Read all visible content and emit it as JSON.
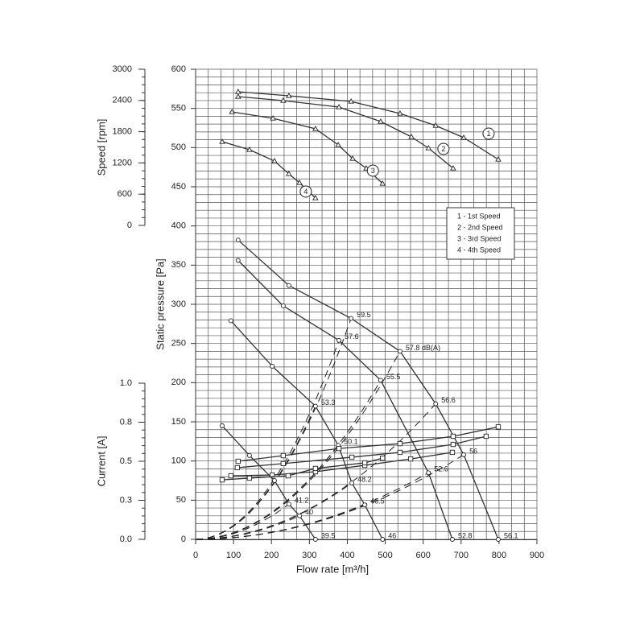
{
  "chart_data": {
    "type": "line",
    "xlabel": "Flow rate [m³/h]",
    "ylabel": "Static pressure [Pa]",
    "xlim": [
      0,
      900
    ],
    "xticks": [
      0,
      100,
      200,
      300,
      400,
      500,
      600,
      700,
      800,
      900
    ],
    "ylim": [
      0,
      600
    ],
    "yticks": [
      0,
      50,
      100,
      150,
      200,
      250,
      300,
      350,
      400,
      450,
      500,
      550,
      600
    ],
    "grid": true,
    "speed_axis": {
      "label": "Speed [rpm]",
      "lim": [
        0,
        3000
      ],
      "ticks": [
        0,
        600,
        1200,
        1800,
        2400,
        3000
      ]
    },
    "current_axis": {
      "label": "Current [A]",
      "lim": [
        0,
        1
      ],
      "ticks": [
        {
          "value": 0,
          "label": "0.0"
        },
        {
          "value": 0.25,
          "label": "0.3"
        },
        {
          "value": 0.5,
          "label": "0.5"
        },
        {
          "value": 0.75,
          "label": "0.8"
        },
        {
          "value": 1,
          "label": "1.0"
        }
      ]
    },
    "legend": [
      "1 - 1st Speed",
      "2 - 2nd Speed",
      "3 - 3rd Speed",
      "4 - 4th Speed"
    ],
    "series": [
      {
        "name": "1",
        "axis": "speed",
        "marker": "triangle",
        "color": "#333333",
        "x": [
          112,
          246,
          410,
          539,
          633,
          707,
          798
        ],
        "values": [
          2567,
          2490,
          2381,
          2149,
          1918,
          1686,
          1268
        ]
      },
      {
        "name": "2",
        "axis": "speed",
        "marker": "triangle",
        "color": "#333333",
        "x": [
          112,
          231,
          378,
          488,
          569,
          614,
          679
        ],
        "values": [
          2474,
          2397,
          2273,
          1995,
          1701,
          1485,
          1098
        ]
      },
      {
        "name": "3",
        "axis": "speed",
        "marker": "triangle",
        "color": "#333333",
        "x": [
          96,
          204,
          316,
          376,
          414,
          450,
          493
        ],
        "values": [
          2180,
          2057,
          1856,
          1546,
          1283,
          1098,
          804
        ]
      },
      {
        "name": "4",
        "axis": "speed",
        "marker": "triangle",
        "color": "#333333",
        "x": [
          70,
          142,
          208,
          246,
          274,
          316
        ],
        "values": [
          1608,
          1454,
          1237,
          990,
          820,
          526
        ]
      },
      {
        "axis": "pressure",
        "marker": "circle",
        "color": "#333333",
        "x": [
          112,
          246,
          410,
          539,
          633,
          707,
          798
        ],
        "values": [
          382,
          324,
          282,
          240,
          173,
          108,
          0
        ],
        "noise": [
          null,
          null,
          "59.5",
          "57.8 dB(A)",
          "56.6",
          "56",
          "56.1"
        ]
      },
      {
        "axis": "pressure",
        "marker": "circle",
        "color": "#333333",
        "x": [
          112,
          231,
          378,
          488,
          614,
          677
        ],
        "values": [
          356,
          298,
          254,
          203,
          85,
          0
        ],
        "noise": [
          null,
          null,
          "57.6",
          "55.5",
          "52.6",
          "52.8"
        ]
      },
      {
        "axis": "pressure",
        "marker": "circle",
        "color": "#333333",
        "x": [
          93,
          202,
          316,
          376,
          412,
          446,
          493
        ],
        "values": [
          279,
          221,
          170,
          120,
          72,
          44,
          0
        ],
        "noise": [
          null,
          null,
          "53.3",
          "50.1",
          "48.2",
          "46.5",
          "46"
        ]
      },
      {
        "axis": "pressure",
        "marker": "circle",
        "color": "#333333",
        "x": [
          70,
          142,
          208,
          246,
          274,
          316
        ],
        "values": [
          145,
          107,
          75,
          45,
          30,
          0
        ],
        "noise": [
          null,
          null,
          null,
          "41.2",
          "40",
          "39.5"
        ]
      },
      {
        "axis": "current",
        "marker": "square",
        "color": "#333333",
        "x": [
          112,
          231,
          378,
          539,
          679,
          798
        ],
        "values": [
          0.5,
          0.536,
          0.582,
          0.613,
          0.66,
          0.72
        ]
      },
      {
        "axis": "current",
        "marker": "square",
        "color": "#333333",
        "x": [
          110,
          231,
          412,
          539,
          679,
          766
        ],
        "values": [
          0.459,
          0.485,
          0.526,
          0.557,
          0.608,
          0.66
        ]
      },
      {
        "axis": "current",
        "marker": "square",
        "color": "#333333",
        "x": [
          93,
          202,
          316,
          446,
          567,
          677
        ],
        "values": [
          0.407,
          0.412,
          0.433,
          0.474,
          0.515,
          0.557
        ]
      },
      {
        "axis": "current",
        "marker": "square",
        "color": "#333333",
        "x": [
          70,
          142,
          244,
          316,
          446,
          493
        ],
        "values": [
          0.381,
          0.392,
          0.407,
          0.454,
          0.49,
          0.52
        ]
      }
    ]
  }
}
